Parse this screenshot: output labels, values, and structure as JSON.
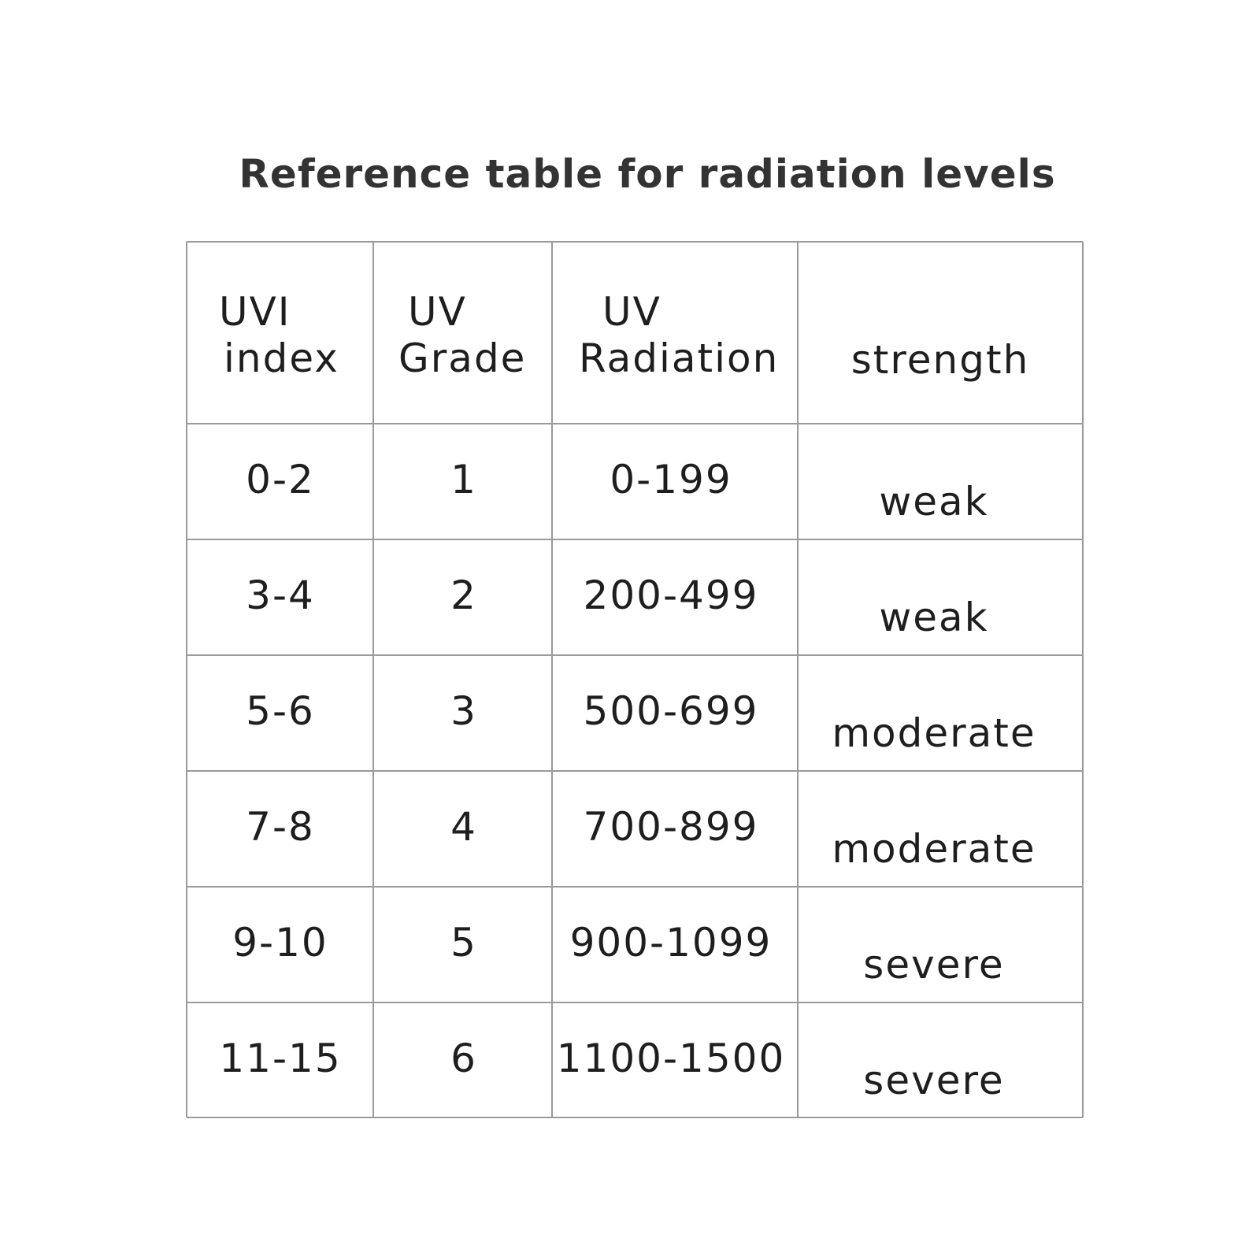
{
  "title": "Reference table for radiation levels",
  "table": {
    "headers": [
      [
        "UVI",
        "index"
      ],
      [
        "UV",
        "Grade"
      ],
      [
        "UV",
        "Radiation"
      ],
      [
        "strength"
      ]
    ],
    "rows": [
      [
        "0-2",
        1,
        "0-199",
        "weak"
      ],
      [
        "3-4",
        2,
        "200-499",
        "weak"
      ],
      [
        "5-6",
        3,
        "500-699",
        "moderate"
      ],
      [
        "7-8",
        4,
        "700-899",
        "moderate"
      ],
      [
        "9-10",
        5,
        "900-1099",
        "severe"
      ],
      [
        "11-15",
        6,
        "1100-1500",
        "severe"
      ]
    ]
  }
}
